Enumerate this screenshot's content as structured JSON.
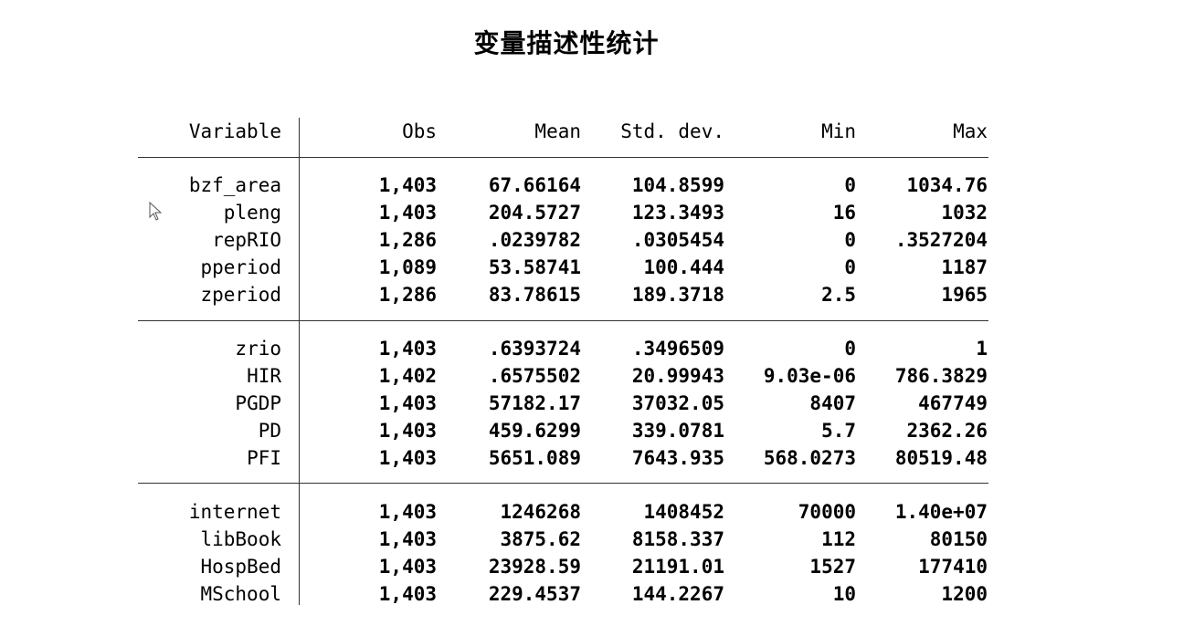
{
  "title": "变量描述性统计",
  "table": {
    "headers": {
      "variable": "Variable",
      "obs": "Obs",
      "mean": "Mean",
      "std_dev": "Std. dev.",
      "min": "Min",
      "max": "Max"
    },
    "groups": [
      [
        {
          "variable": "bzf_area",
          "obs": "1,403",
          "mean": "67.66164",
          "std_dev": "104.8599",
          "min": "0",
          "max": "1034.76"
        },
        {
          "variable": "pleng",
          "obs": "1,403",
          "mean": "204.5727",
          "std_dev": "123.3493",
          "min": "16",
          "max": "1032"
        },
        {
          "variable": "repRIO",
          "obs": "1,286",
          "mean": ".0239782",
          "std_dev": ".0305454",
          "min": "0",
          "max": ".3527204"
        },
        {
          "variable": "pperiod",
          "obs": "1,089",
          "mean": "53.58741",
          "std_dev": "100.444",
          "min": "0",
          "max": "1187"
        },
        {
          "variable": "zperiod",
          "obs": "1,286",
          "mean": "83.78615",
          "std_dev": "189.3718",
          "min": "2.5",
          "max": "1965"
        }
      ],
      [
        {
          "variable": "zrio",
          "obs": "1,403",
          "mean": ".6393724",
          "std_dev": ".3496509",
          "min": "0",
          "max": "1"
        },
        {
          "variable": "HIR",
          "obs": "1,402",
          "mean": ".6575502",
          "std_dev": "20.99943",
          "min": "9.03e-06",
          "max": "786.3829"
        },
        {
          "variable": "PGDP",
          "obs": "1,403",
          "mean": "57182.17",
          "std_dev": "37032.05",
          "min": "8407",
          "max": "467749"
        },
        {
          "variable": "PD",
          "obs": "1,403",
          "mean": "459.6299",
          "std_dev": "339.0781",
          "min": "5.7",
          "max": "2362.26"
        },
        {
          "variable": "PFI",
          "obs": "1,403",
          "mean": "5651.089",
          "std_dev": "7643.935",
          "min": "568.0273",
          "max": "80519.48"
        }
      ],
      [
        {
          "variable": "internet",
          "obs": "1,403",
          "mean": "1246268",
          "std_dev": "1408452",
          "min": "70000",
          "max": "1.40e+07"
        },
        {
          "variable": "libBook",
          "obs": "1,403",
          "mean": "3875.62",
          "std_dev": "8158.337",
          "min": "112",
          "max": "80150"
        },
        {
          "variable": "HospBed",
          "obs": "1,403",
          "mean": "23928.59",
          "std_dev": "21191.01",
          "min": "1527",
          "max": "177410"
        },
        {
          "variable": "MSchool",
          "obs": "1,403",
          "mean": "229.4537",
          "std_dev": "144.2267",
          "min": "10",
          "max": "1200"
        }
      ]
    ]
  }
}
